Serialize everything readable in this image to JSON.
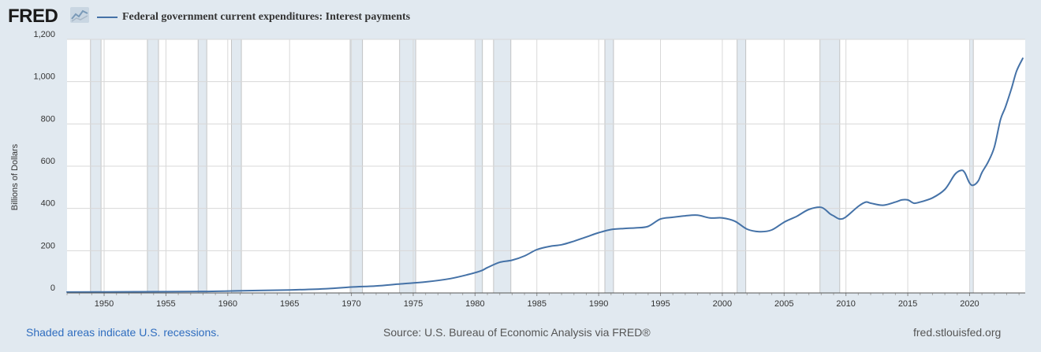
{
  "header": {
    "logo_text": "FRED",
    "legend_label": "Federal government current expenditures: Interest payments"
  },
  "colors": {
    "series": "#4572a7",
    "recession": "#e1e9f0",
    "grid": "#d8d8d8"
  },
  "footer": {
    "recession_note": "Shaded areas indicate U.S. recessions.",
    "source": "Source: U.S. Bureau of Economic Analysis via FRED®",
    "site": "fred.stlouisfed.org"
  },
  "chart_data": {
    "type": "line",
    "title": "",
    "xlabel": "",
    "ylabel": "Billions of Dollars",
    "xlim": [
      1947.0,
      2024.5
    ],
    "ylim": [
      0,
      1200
    ],
    "yticks": [
      0,
      200,
      400,
      600,
      800,
      1000,
      1200
    ],
    "ytick_labels": [
      "0",
      "200",
      "400",
      "600",
      "800",
      "1,000",
      "1,200"
    ],
    "xticks": [
      1950,
      1955,
      1960,
      1965,
      1970,
      1975,
      1980,
      1985,
      1990,
      1995,
      2000,
      2005,
      2010,
      2015,
      2020
    ],
    "grid": true,
    "legend_placement": "top-left",
    "recessions": [
      [
        1948.9,
        1949.75
      ],
      [
        1953.5,
        1954.4
      ],
      [
        1957.6,
        1958.3
      ],
      [
        1960.3,
        1961.1
      ],
      [
        1969.9,
        1970.9
      ],
      [
        1973.9,
        1975.2
      ],
      [
        1980.0,
        1980.6
      ],
      [
        1981.5,
        1982.9
      ],
      [
        1990.5,
        1991.2
      ],
      [
        2001.2,
        2001.9
      ],
      [
        2007.9,
        2009.5
      ],
      [
        2020.0,
        2020.3
      ]
    ],
    "series": [
      {
        "name": "Federal government current expenditures: Interest payments",
        "x": [
          1947,
          1950,
          1955,
          1958,
          1960,
          1962,
          1965,
          1968,
          1970,
          1972,
          1974,
          1976,
          1978,
          1979.5,
          1980.5,
          1981,
          1982,
          1983,
          1984,
          1985,
          1986,
          1987,
          1988,
          1989,
          1990,
          1991,
          1992,
          1993,
          1994,
          1995,
          1996,
          1997,
          1998,
          1999,
          2000,
          2001,
          2002,
          2003,
          2004,
          2005,
          2006,
          2007,
          2008,
          2008.7,
          2009,
          2009.5,
          2010,
          2011,
          2011.6,
          2012,
          2013,
          2014,
          2014.5,
          2015,
          2015.5,
          2016,
          2017,
          2018,
          2018.8,
          2019.3,
          2019.6,
          2020,
          2020.3,
          2020.7,
          2021,
          2021.5,
          2022,
          2022.5,
          2022.9,
          2023.4,
          2023.8,
          2024.3
        ],
        "y": [
          4,
          5,
          6,
          7,
          9,
          11,
          14,
          20,
          28,
          33,
          43,
          52,
          68,
          88,
          105,
          120,
          145,
          155,
          175,
          205,
          220,
          228,
          245,
          265,
          285,
          300,
          305,
          308,
          315,
          350,
          358,
          365,
          368,
          355,
          355,
          340,
          302,
          290,
          298,
          335,
          362,
          395,
          405,
          375,
          365,
          350,
          360,
          410,
          430,
          425,
          415,
          430,
          440,
          440,
          425,
          430,
          450,
          490,
          560,
          580,
          570,
          520,
          510,
          530,
          570,
          620,
          690,
          820,
          880,
          970,
          1050,
          1110
        ]
      }
    ]
  }
}
